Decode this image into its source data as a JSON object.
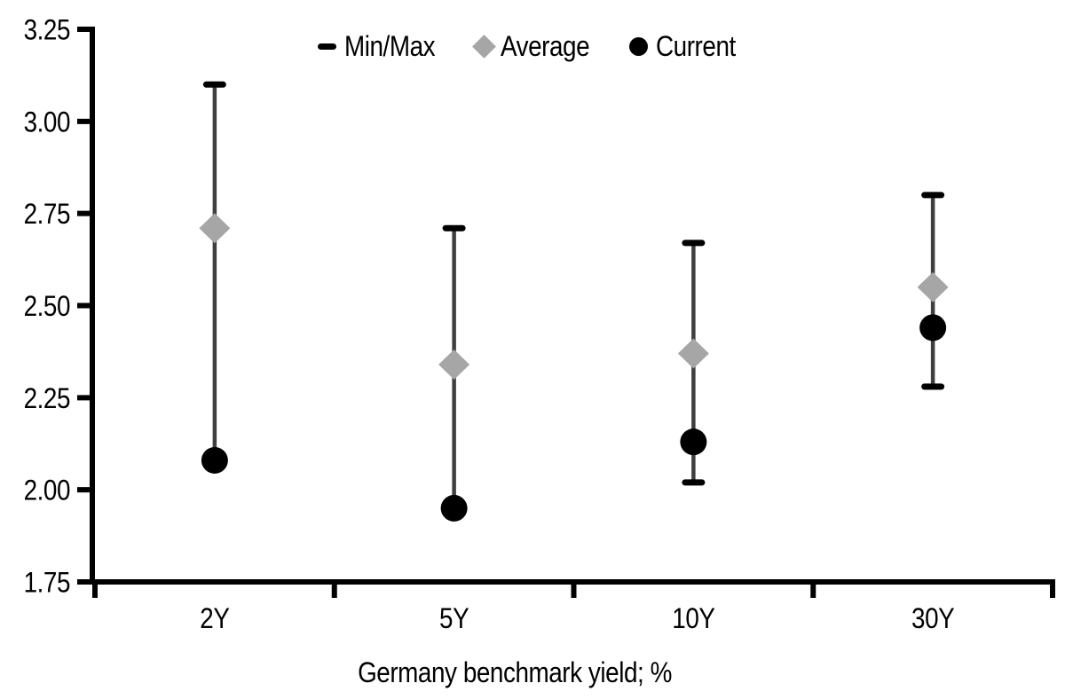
{
  "chart_data": {
    "type": "scatter",
    "title": "",
    "xlabel": "Germany benchmark yield; %",
    "ylabel": "",
    "categories": [
      "2Y",
      "5Y",
      "10Y",
      "30Y"
    ],
    "ylim": [
      1.75,
      3.25
    ],
    "ytick_step": 0.25,
    "ytick_labels": [
      "3.25",
      "3.00",
      "2.75",
      "2.50",
      "2.25",
      "2.00",
      "1.75"
    ],
    "grid": false,
    "legend_position": "top-center",
    "series": [
      {
        "name": "Min/Max",
        "type": "range",
        "min": [
          2.08,
          1.95,
          2.02,
          2.28
        ],
        "max": [
          3.1,
          2.71,
          2.67,
          2.8
        ]
      },
      {
        "name": "Average",
        "type": "point-diamond",
        "values": [
          2.71,
          2.34,
          2.37,
          2.55
        ]
      },
      {
        "name": "Current",
        "type": "point-circle",
        "values": [
          2.08,
          1.95,
          2.13,
          2.44
        ]
      }
    ],
    "colors": {
      "axis": "#000000",
      "text": "#000000",
      "range_cap": "#000000",
      "range_line": "#3f3f3f",
      "average": "#a6a6a6",
      "current": "#000000",
      "background": "#ffffff"
    }
  }
}
